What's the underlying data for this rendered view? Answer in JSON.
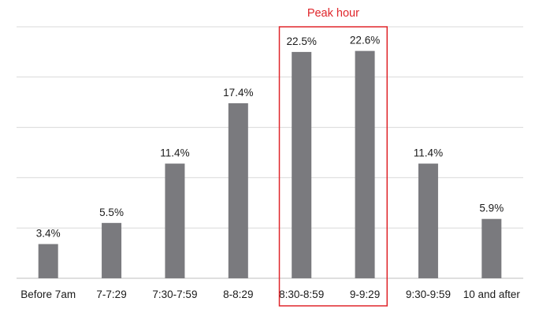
{
  "chart_data": {
    "type": "bar",
    "categories": [
      "Before 7am",
      "7-7:29",
      "7:30-7:59",
      "8-8:29",
      "8:30-8:59",
      "9-9:29",
      "9:30-9:59",
      "10 and after"
    ],
    "values": [
      3.4,
      5.5,
      11.4,
      17.4,
      22.5,
      22.6,
      11.4,
      5.9
    ],
    "value_labels": [
      "3.4%",
      "5.5%",
      "11.4%",
      "17.4%",
      "22.5%",
      "22.6%",
      "11.4%",
      "5.9%"
    ],
    "title": "",
    "xlabel": "",
    "ylabel": "",
    "ylim": [
      0,
      25
    ],
    "grid": true,
    "legend": "none",
    "bar_color": "#7a7a7e",
    "highlight": {
      "label": "Peak hour",
      "categories": [
        "8:30-8:59",
        "9-9:29"
      ],
      "color": "#e0262b"
    }
  }
}
